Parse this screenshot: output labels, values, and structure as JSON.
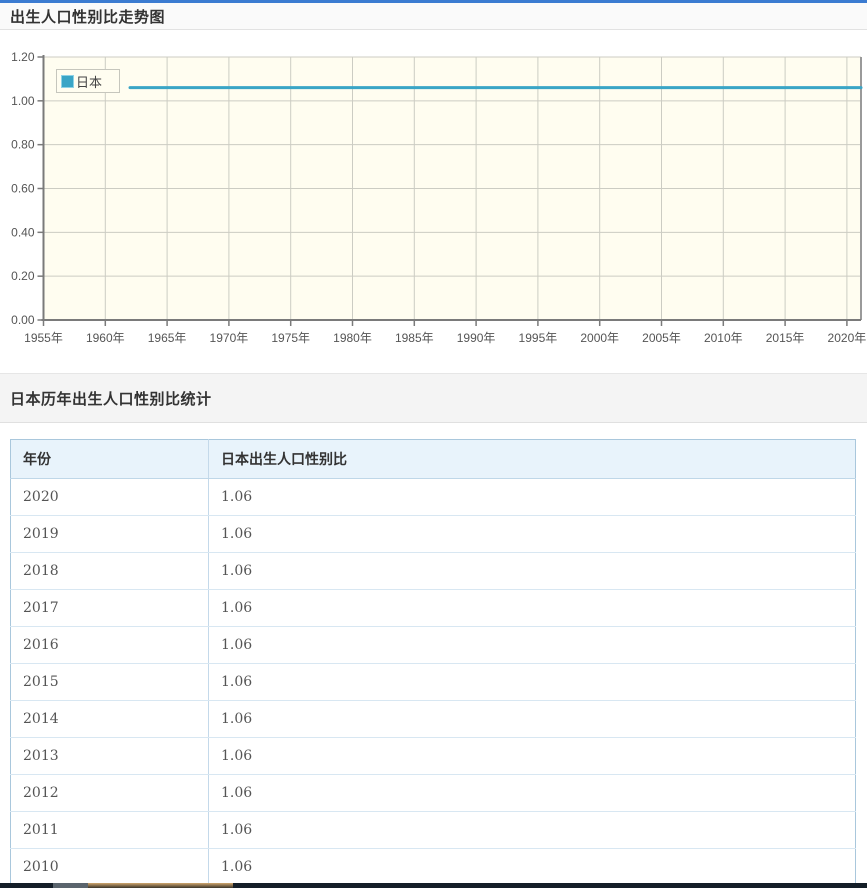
{
  "page": {
    "top_accent_color": "#3b7bd1",
    "chart_section_title": "出生人口性别比走势图",
    "table_section_title": "日本历年出生人口性别比统计"
  },
  "chart_data": {
    "type": "line",
    "title": "出生人口性别比走势图",
    "plot_bg": "#fffdf0",
    "grid": true,
    "grid_color": "#ccccc3",
    "axis_color": "#7a7a7a",
    "right_border_color": "#9a9a9a",
    "tick_label_color": "#555555",
    "x_tick_years": [
      1955,
      1960,
      1965,
      1970,
      1975,
      1980,
      1985,
      1990,
      1995,
      2000,
      2005,
      2010,
      2015,
      2020
    ],
    "x_tick_labels": [
      "1955年",
      "1960年",
      "1965年",
      "1970年",
      "1975年",
      "1980年",
      "1985年",
      "1990年",
      "1995年",
      "2000年",
      "2005年",
      "2010年",
      "2015年",
      "2020年"
    ],
    "y_ticks": [
      0,
      0.2,
      0.4,
      0.6,
      0.8,
      1.0,
      1.2
    ],
    "y_tick_labels": [
      "0.00",
      "0.20",
      "0.40",
      "0.60",
      "0.80",
      "1.00",
      "1.20"
    ],
    "ylim": [
      0,
      1.2
    ],
    "legend": {
      "position": "top-left-inside",
      "entries": [
        {
          "label": "日本",
          "color": "#3aa5c6"
        }
      ]
    },
    "series": [
      {
        "name": "日本",
        "color": "#3aa5c6",
        "constant_value": 1.06,
        "visible_from_year": 1962,
        "to_plot_right_edge": true
      }
    ]
  },
  "table": {
    "headers": [
      "年份",
      "日本出生人口性别比"
    ],
    "header_bg": "#e8f3fb",
    "border_color": "#a9c7dc",
    "rows": [
      {
        "year": "2020",
        "value": "1.06"
      },
      {
        "year": "2019",
        "value": "1.06"
      },
      {
        "year": "2018",
        "value": "1.06"
      },
      {
        "year": "2017",
        "value": "1.06"
      },
      {
        "year": "2016",
        "value": "1.06"
      },
      {
        "year": "2015",
        "value": "1.06"
      },
      {
        "year": "2014",
        "value": "1.06"
      },
      {
        "year": "2013",
        "value": "1.06"
      },
      {
        "year": "2012",
        "value": "1.06"
      },
      {
        "year": "2011",
        "value": "1.06"
      },
      {
        "year": "2010",
        "value": "1.06"
      }
    ]
  },
  "footer": {
    "bar_color": "#141e28",
    "segment_gray": {
      "x": 53,
      "width": 35,
      "color": "#5a646d"
    },
    "segment_tan": {
      "x": 88,
      "width": 145,
      "color_top": "#d1a76f",
      "color_bottom": "#3a342a"
    }
  }
}
